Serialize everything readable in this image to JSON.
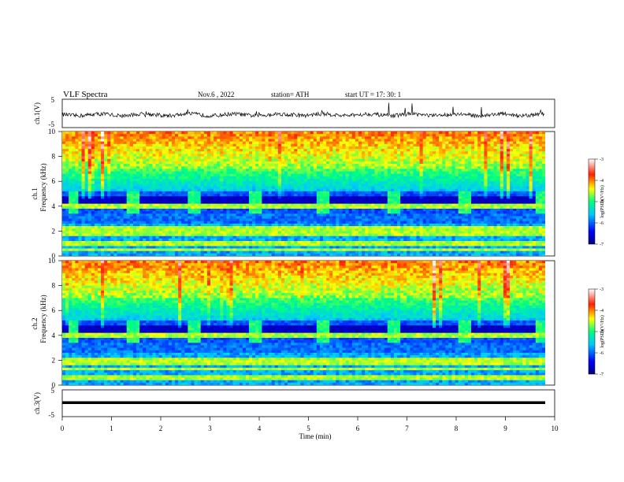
{
  "header": {
    "title": "VLF Spectra",
    "date": "Nov.6  , 2022",
    "station": "station= ATH",
    "start_ut": "start UT =   17: 30: 1"
  },
  "chart_data": [
    {
      "type": "line",
      "panel": "ch1-waveform",
      "ylabel": "ch.1(V)",
      "ylim": [
        -5,
        5
      ],
      "yticks": [
        "5",
        "-5"
      ],
      "x_range_min": [
        0,
        9.8
      ],
      "baseline_v": -0.5,
      "series": [
        {
          "values_summary": "noisy waveform around -0.5 V with sporadic spikes"
        }
      ]
    },
    {
      "type": "heatmap",
      "panel": "ch1-spectrogram",
      "ylabel": "Frequency (kHz)",
      "channel_label": "ch.1",
      "ylim": [
        0,
        10
      ],
      "yticks": [
        "0",
        "2",
        "4",
        "6",
        "8",
        "10"
      ],
      "colorbar": {
        "label": "log(PSD)(V²/Hz)",
        "ticks": [
          "-3",
          "-4",
          "-5",
          "-6",
          "-7"
        ],
        "range": [
          -7,
          -3
        ]
      },
      "transmitter_bursts_min": [
        [
          0.1,
          0.35
        ],
        [
          1.28,
          1.6
        ],
        [
          2.52,
          2.8
        ],
        [
          3.8,
          4.05
        ],
        [
          5.15,
          5.45
        ],
        [
          6.6,
          6.85
        ],
        [
          8.05,
          8.3
        ],
        [
          9.6,
          9.8
        ]
      ],
      "bands_khz": [
        4.0,
        2.2,
        1.8,
        1.0,
        0.5
      ]
    },
    {
      "type": "heatmap",
      "panel": "ch2-spectrogram",
      "ylabel": "Frequency (kHz)",
      "channel_label": "ch.2",
      "ylim": [
        0,
        10
      ],
      "yticks": [
        "0",
        "2",
        "4",
        "6",
        "8",
        "10"
      ],
      "colorbar": {
        "label": "log(PSD)(V²/Hz)",
        "ticks": [
          "-3",
          "-4",
          "-5",
          "-6",
          "-7"
        ],
        "range": [
          -7,
          -3
        ]
      },
      "transmitter_bursts_min": [
        [
          0.1,
          0.35
        ],
        [
          1.28,
          1.6
        ],
        [
          2.52,
          2.8
        ],
        [
          3.8,
          4.05
        ],
        [
          5.15,
          5.45
        ],
        [
          6.6,
          6.85
        ],
        [
          8.05,
          8.3
        ],
        [
          9.6,
          9.8
        ]
      ],
      "bands_khz": [
        4.0,
        2.0,
        1.8,
        1.3,
        0.6
      ]
    },
    {
      "type": "line",
      "panel": "ch3-waveform",
      "ylabel": "ch.3(V)",
      "ylim": [
        -5,
        5
      ],
      "yticks": [
        "5",
        "-5"
      ],
      "x_range_min": [
        0,
        9.8
      ],
      "baseline_v": -2,
      "series": [
        {
          "values_summary": "flat thick line near -2 V"
        }
      ]
    }
  ],
  "xaxis": {
    "label": "Time  (min)",
    "ticks": [
      "0",
      "1",
      "2",
      "3",
      "4",
      "5",
      "6",
      "7",
      "8",
      "9",
      "10"
    ],
    "range": [
      0,
      10
    ]
  }
}
